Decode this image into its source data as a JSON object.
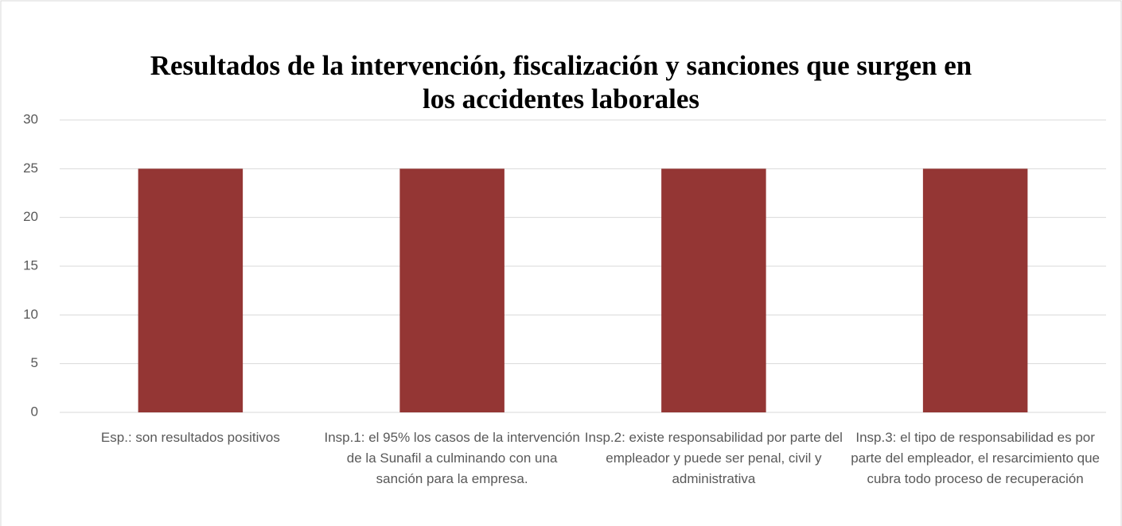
{
  "chart_data": {
    "type": "bar",
    "title": "Resultados de la intervención, fiscalización y sanciones que surgen en los accidentes laborales",
    "categories": [
      "Esp.: son resultados positivos",
      "Insp.1: el 95% los casos de la intervención de la Sunafil a culminando con una sanción para la empresa.",
      "Insp.2: existe responsabilidad por parte del empleador y puede ser penal, civil y administrativa",
      "Insp.3: el tipo de responsabilidad es por parte del empleador, el resarcimiento que cubra todo proceso de recuperación"
    ],
    "values": [
      25,
      25,
      25,
      25
    ],
    "color": "#943634",
    "ylim": [
      0,
      30
    ],
    "yticks": [
      0,
      5,
      10,
      15,
      20,
      25,
      30
    ],
    "grid": true
  }
}
